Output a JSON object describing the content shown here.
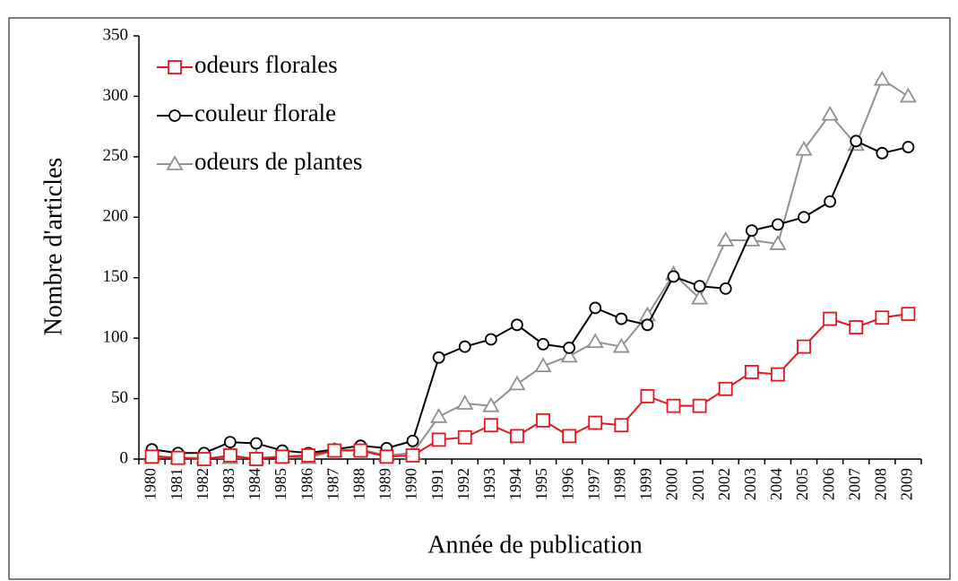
{
  "chart_data": {
    "type": "line",
    "xlabel": "Année de publication",
    "ylabel": "Nombre d'articles",
    "categories": [
      "1980",
      "1981",
      "1982",
      "1983",
      "1984",
      "1985",
      "1986",
      "1987",
      "1988",
      "1989",
      "1990",
      "1991",
      "1992",
      "1993",
      "1994",
      "1995",
      "1996",
      "1997",
      "1998",
      "1999",
      "2000",
      "2001",
      "2002",
      "2003",
      "2004",
      "2005",
      "2006",
      "2007",
      "2008",
      "2009"
    ],
    "series": [
      {
        "name": "odeurs florales",
        "color": "#e8141a",
        "marker": "square",
        "values": [
          2,
          1,
          0,
          3,
          0,
          2,
          3,
          7,
          7,
          2,
          3,
          16,
          18,
          28,
          19,
          32,
          19,
          30,
          28,
          52,
          44,
          44,
          58,
          72,
          70,
          93,
          116,
          109,
          117,
          120
        ]
      },
      {
        "name": "couleur florale",
        "color": "#000000",
        "marker": "circle",
        "values": [
          8,
          5,
          5,
          14,
          13,
          7,
          5,
          8,
          11,
          9,
          15,
          84,
          93,
          99,
          111,
          95,
          92,
          125,
          116,
          111,
          151,
          143,
          141,
          189,
          194,
          200,
          213,
          263,
          253,
          258
        ]
      },
      {
        "name": "odeurs de plantes",
        "color": "#909090",
        "marker": "triangle",
        "values": [
          3,
          1,
          1,
          1,
          1,
          2,
          1,
          7,
          8,
          3,
          5,
          35,
          46,
          44,
          62,
          77,
          85,
          97,
          93,
          119,
          153,
          133,
          181,
          181,
          178,
          256,
          285,
          260,
          314,
          300
        ]
      }
    ],
    "ylim": [
      0,
      350
    ],
    "yticks": [
      0,
      50,
      100,
      150,
      200,
      250,
      300,
      350
    ],
    "legend": "top-left"
  }
}
